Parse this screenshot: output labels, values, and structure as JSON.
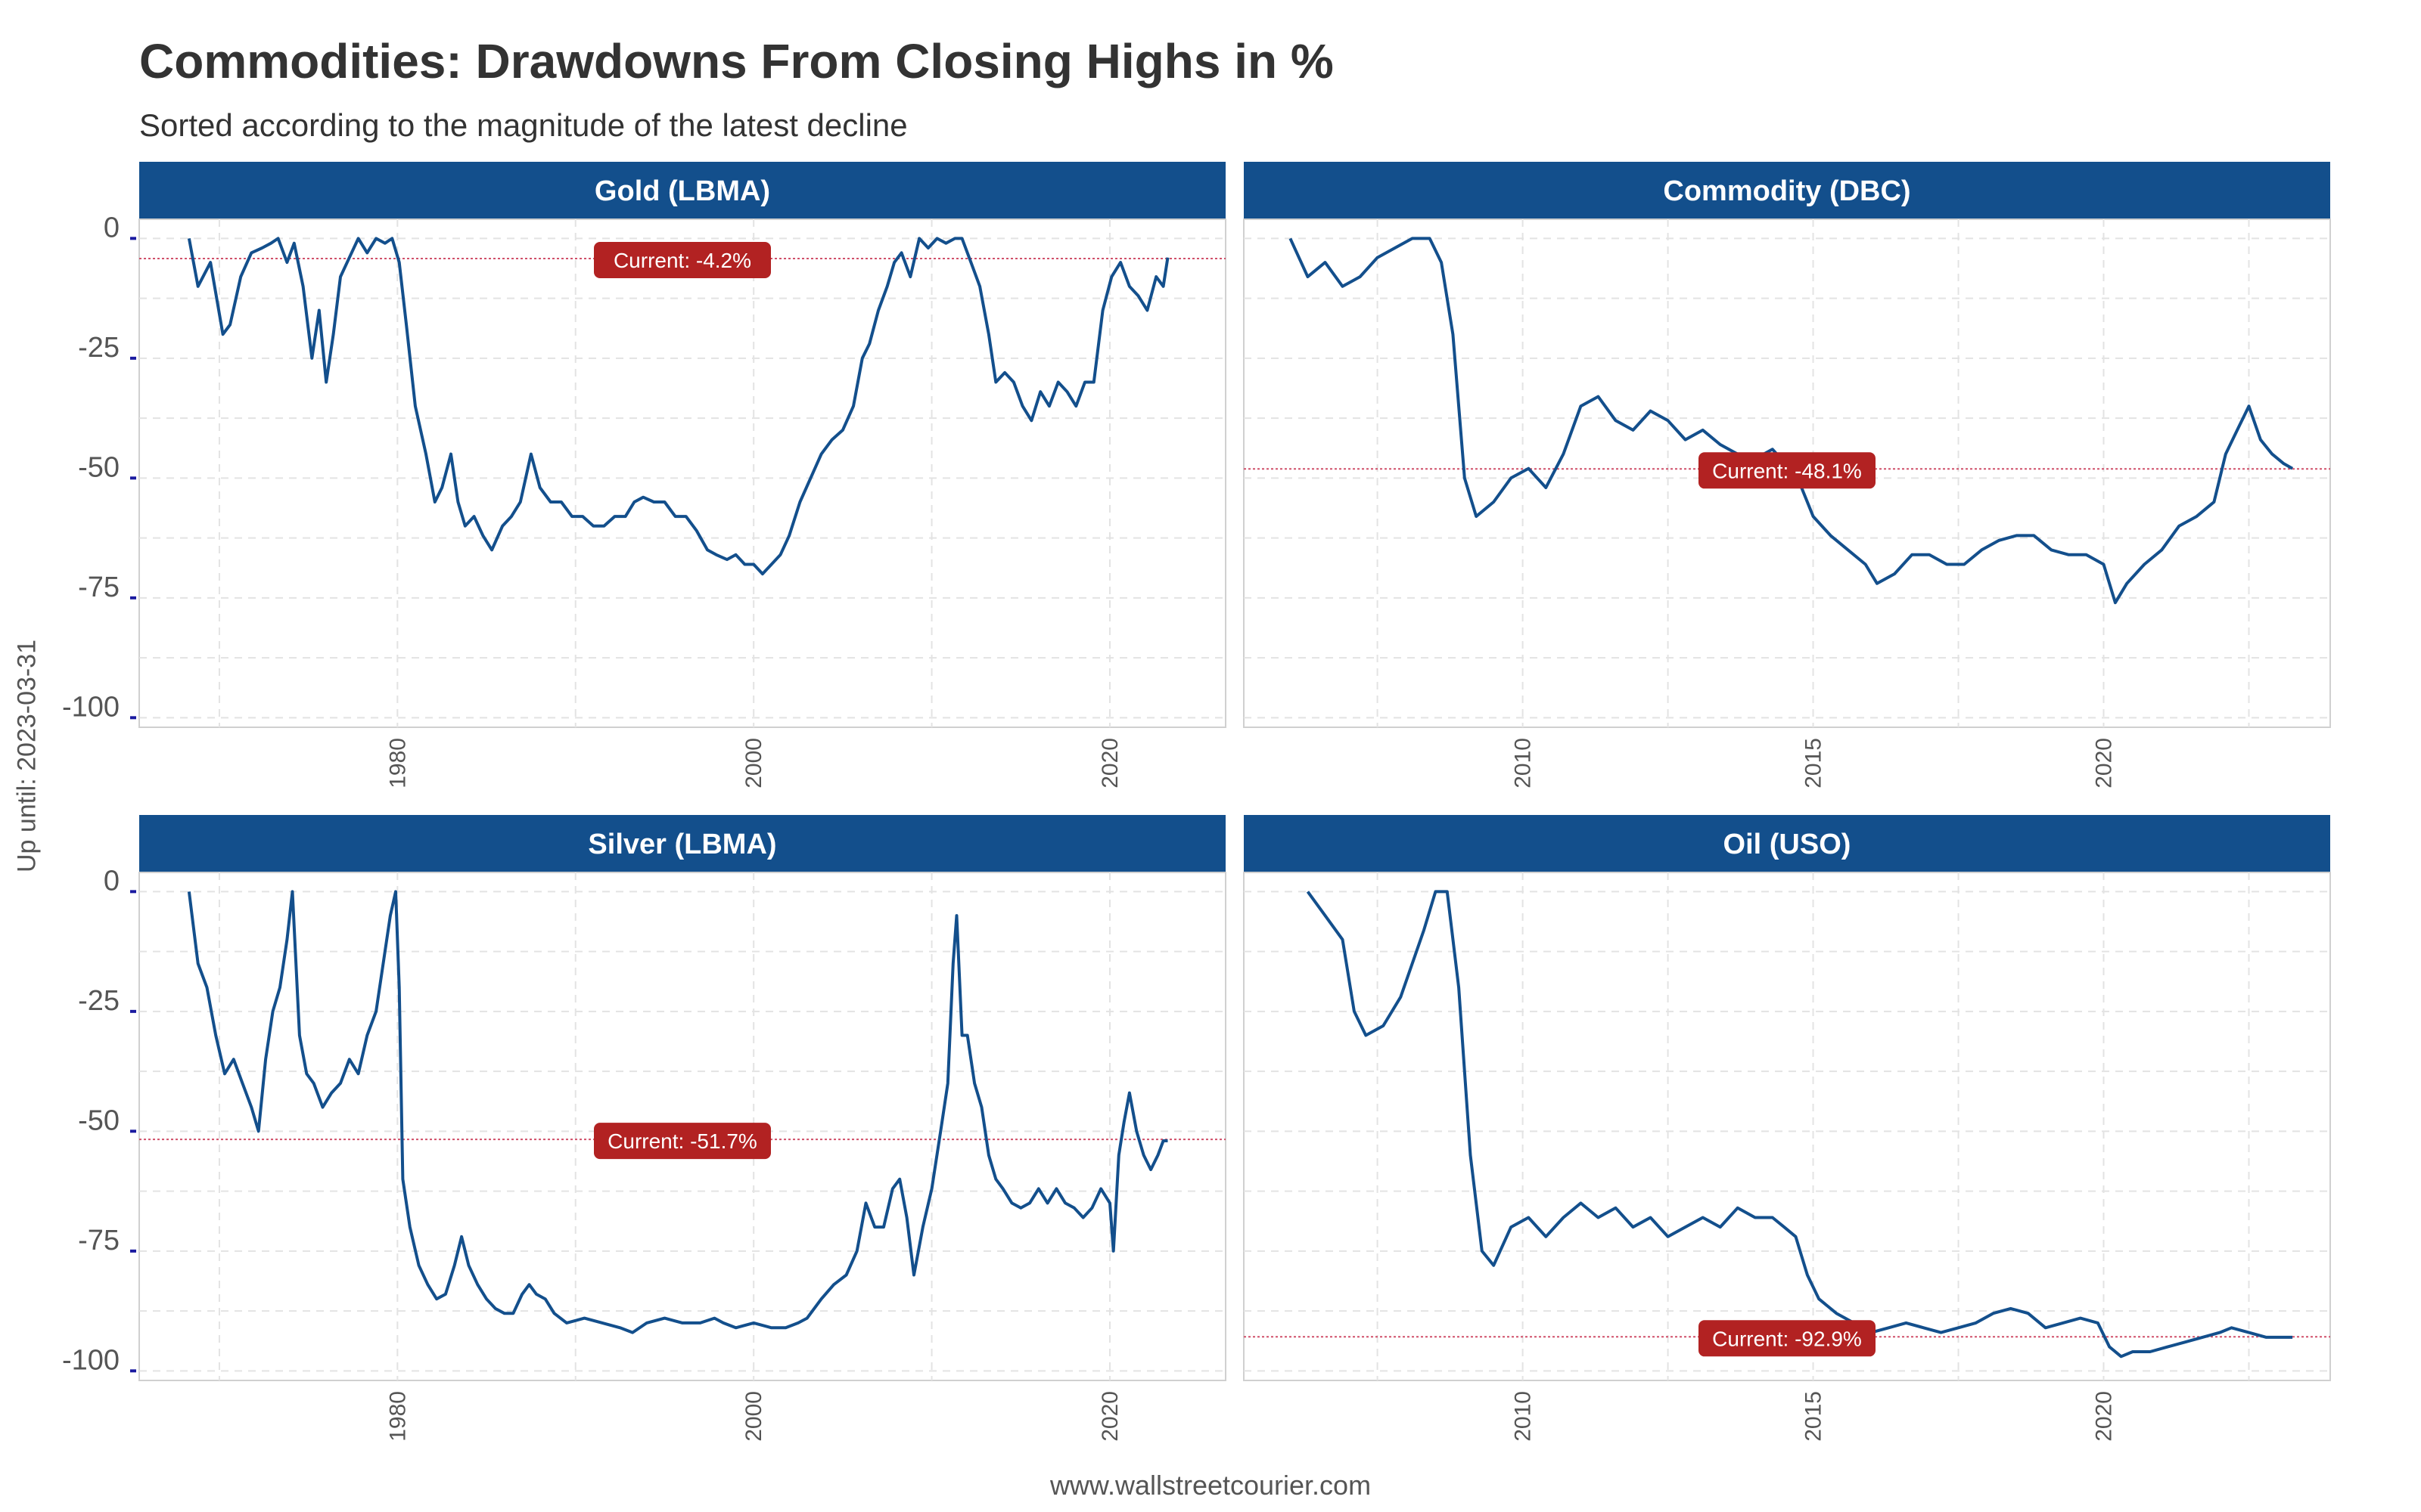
{
  "title": "Commodities: Drawdowns From Closing Highs in %",
  "subtitle": "Sorted according to the magnitude of the latest decline",
  "ylabel": "Up until: 2023-03-31",
  "caption": "www.wallstreetcourier.com",
  "colors": {
    "line": "#134f8c",
    "strip": "#134f8c",
    "badge": "#b22222",
    "refline": "#d0506a",
    "grid": "#e3e3e3"
  },
  "chart_data": [
    {
      "type": "line",
      "title": "Gold (LBMA)",
      "xlim": [
        1965.5,
        2026.5
      ],
      "ylim": [
        -102,
        4
      ],
      "xticks": [
        1980,
        2000,
        2020
      ],
      "yticks": [
        0,
        -25,
        -50,
        -75,
        -100
      ],
      "current_value": -4.2,
      "current_label": "Current:  -4.2%",
      "series": [
        {
          "x": [
            1968.3,
            1968.8,
            1969.5,
            1970.2,
            1970.6,
            1971.2,
            1971.8,
            1972.4,
            1972.9,
            1973.3,
            1973.8,
            1974.2,
            1974.7,
            1975.2,
            1975.6,
            1976.0,
            1976.4,
            1976.8,
            1977.3,
            1977.8,
            1978.3,
            1978.8,
            1979.3,
            1979.7,
            1980.1,
            1980.5,
            1981.0,
            1981.6,
            1982.1,
            1982.5,
            1983.0,
            1983.4,
            1983.8,
            1984.3,
            1984.8,
            1985.3,
            1985.9,
            1986.4,
            1986.9,
            1987.5,
            1988.0,
            1988.6,
            1989.2,
            1989.8,
            1990.4,
            1991.0,
            1991.6,
            1992.2,
            1992.8,
            1993.3,
            1993.8,
            1994.4,
            1995.0,
            1995.6,
            1996.2,
            1996.8,
            1997.4,
            1997.9,
            1998.5,
            1999.0,
            1999.5,
            2000.0,
            2000.5,
            2001.0,
            2001.5,
            2002.0,
            2002.6,
            2003.2,
            2003.8,
            2004.4,
            2005.0,
            2005.6,
            2006.1,
            2006.5,
            2007.0,
            2007.5,
            2007.9,
            2008.3,
            2008.8,
            2009.3,
            2009.8,
            2010.3,
            2010.8,
            2011.3,
            2011.7,
            2012.2,
            2012.7,
            2013.2,
            2013.6,
            2014.1,
            2014.6,
            2015.1,
            2015.6,
            2016.1,
            2016.6,
            2017.1,
            2017.6,
            2018.1,
            2018.6,
            2019.1,
            2019.6,
            2020.1,
            2020.6,
            2021.1,
            2021.6,
            2022.1,
            2022.6,
            2023.0,
            2023.25
          ],
          "y": [
            0,
            -10,
            -5,
            -20,
            -18,
            -8,
            -3,
            -2,
            -1,
            0,
            -5,
            -1,
            -10,
            -25,
            -15,
            -30,
            -20,
            -8,
            -4,
            0,
            -3,
            0,
            -1,
            0,
            -5,
            -18,
            -35,
            -45,
            -55,
            -52,
            -45,
            -55,
            -60,
            -58,
            -62,
            -65,
            -60,
            -58,
            -55,
            -45,
            -52,
            -55,
            -55,
            -58,
            -58,
            -60,
            -60,
            -58,
            -58,
            -55,
            -54,
            -55,
            -55,
            -58,
            -58,
            -61,
            -65,
            -66,
            -67,
            -66,
            -68,
            -68,
            -70,
            -68,
            -66,
            -62,
            -55,
            -50,
            -45,
            -42,
            -40,
            -35,
            -25,
            -22,
            -15,
            -10,
            -5,
            -3,
            -8,
            0,
            -2,
            0,
            -1,
            0,
            0,
            -5,
            -10,
            -20,
            -30,
            -28,
            -30,
            -35,
            -38,
            -32,
            -35,
            -30,
            -32,
            -35,
            -30,
            -30,
            -15,
            -8,
            -5,
            -10,
            -12,
            -15,
            -8,
            -10,
            -4
          ]
        }
      ]
    },
    {
      "type": "line",
      "title": "Commodity (DBC)",
      "xlim": [
        2005.2,
        2023.9
      ],
      "ylim": [
        -102,
        4
      ],
      "xticks": [
        2010,
        2015,
        2020
      ],
      "yticks": [
        0,
        -25,
        -50,
        -75,
        -100
      ],
      "current_value": -48.1,
      "current_label": "Current: -48.1%",
      "series": [
        {
          "x": [
            2006.0,
            2006.3,
            2006.6,
            2006.9,
            2007.2,
            2007.5,
            2007.8,
            2008.1,
            2008.4,
            2008.6,
            2008.8,
            2009.0,
            2009.2,
            2009.5,
            2009.8,
            2010.1,
            2010.4,
            2010.7,
            2011.0,
            2011.3,
            2011.6,
            2011.9,
            2012.2,
            2012.5,
            2012.8,
            2013.1,
            2013.4,
            2013.7,
            2014.0,
            2014.3,
            2014.6,
            2014.8,
            2015.0,
            2015.3,
            2015.6,
            2015.9,
            2016.1,
            2016.4,
            2016.7,
            2017.0,
            2017.3,
            2017.6,
            2017.9,
            2018.2,
            2018.5,
            2018.8,
            2019.1,
            2019.4,
            2019.7,
            2020.0,
            2020.2,
            2020.4,
            2020.7,
            2021.0,
            2021.3,
            2021.6,
            2021.9,
            2022.1,
            2022.3,
            2022.5,
            2022.7,
            2022.9,
            2023.1,
            2023.25
          ],
          "y": [
            0,
            -8,
            -5,
            -10,
            -8,
            -4,
            -2,
            0,
            0,
            -5,
            -20,
            -50,
            -58,
            -55,
            -50,
            -48,
            -52,
            -45,
            -35,
            -33,
            -38,
            -40,
            -36,
            -38,
            -42,
            -40,
            -43,
            -45,
            -46,
            -44,
            -48,
            -52,
            -58,
            -62,
            -65,
            -68,
            -72,
            -70,
            -66,
            -66,
            -68,
            -68,
            -65,
            -63,
            -62,
            -62,
            -65,
            -66,
            -66,
            -68,
            -76,
            -72,
            -68,
            -65,
            -60,
            -58,
            -55,
            -45,
            -40,
            -35,
            -42,
            -45,
            -47,
            -48
          ]
        }
      ]
    },
    {
      "type": "line",
      "title": "Silver (LBMA)",
      "xlim": [
        1965.5,
        2026.5
      ],
      "ylim": [
        -102,
        4
      ],
      "xticks": [
        1980,
        2000,
        2020
      ],
      "yticks": [
        0,
        -25,
        -50,
        -75,
        -100
      ],
      "current_value": -51.7,
      "current_label": "Current: -51.7%",
      "series": [
        {
          "x": [
            1968.3,
            1968.8,
            1969.3,
            1969.8,
            1970.3,
            1970.8,
            1971.3,
            1971.8,
            1972.2,
            1972.6,
            1973.0,
            1973.4,
            1973.8,
            1974.1,
            1974.5,
            1974.9,
            1975.3,
            1975.8,
            1976.3,
            1976.8,
            1977.3,
            1977.8,
            1978.3,
            1978.8,
            1979.2,
            1979.6,
            1979.9,
            1980.1,
            1980.3,
            1980.7,
            1981.2,
            1981.7,
            1982.2,
            1982.7,
            1983.2,
            1983.6,
            1984.0,
            1984.5,
            1985.0,
            1985.5,
            1986.0,
            1986.5,
            1987.0,
            1987.4,
            1987.8,
            1988.3,
            1988.8,
            1989.5,
            1990.5,
            1991.5,
            1992.5,
            1993.2,
            1994.0,
            1995.0,
            1996.0,
            1997.0,
            1997.8,
            1998.3,
            1999.0,
            2000.0,
            2001.0,
            2001.8,
            2002.5,
            2003.0,
            2003.8,
            2004.5,
            2005.2,
            2005.8,
            2006.3,
            2006.8,
            2007.3,
            2007.8,
            2008.2,
            2008.6,
            2009.0,
            2009.5,
            2010.0,
            2010.5,
            2010.9,
            2011.2,
            2011.4,
            2011.7,
            2012.0,
            2012.4,
            2012.8,
            2013.2,
            2013.6,
            2014.0,
            2014.5,
            2015.0,
            2015.5,
            2016.0,
            2016.5,
            2017.0,
            2017.5,
            2018.0,
            2018.5,
            2019.0,
            2019.5,
            2020.0,
            2020.2,
            2020.5,
            2020.8,
            2021.1,
            2021.5,
            2021.9,
            2022.3,
            2022.7,
            2023.0,
            2023.25
          ],
          "y": [
            0,
            -15,
            -20,
            -30,
            -38,
            -35,
            -40,
            -45,
            -50,
            -35,
            -25,
            -20,
            -10,
            0,
            -30,
            -38,
            -40,
            -45,
            -42,
            -40,
            -35,
            -38,
            -30,
            -25,
            -15,
            -5,
            0,
            -20,
            -60,
            -70,
            -78,
            -82,
            -85,
            -84,
            -78,
            -72,
            -78,
            -82,
            -85,
            -87,
            -88,
            -88,
            -84,
            -82,
            -84,
            -85,
            -88,
            -90,
            -89,
            -90,
            -91,
            -92,
            -90,
            -89,
            -90,
            -90,
            -89,
            -90,
            -91,
            -90,
            -91,
            -91,
            -90,
            -89,
            -85,
            -82,
            -80,
            -75,
            -65,
            -70,
            -70,
            -62,
            -60,
            -68,
            -80,
            -70,
            -62,
            -50,
            -40,
            -15,
            -5,
            -30,
            -30,
            -40,
            -45,
            -55,
            -60,
            -62,
            -65,
            -66,
            -65,
            -62,
            -65,
            -62,
            -65,
            -66,
            -68,
            -66,
            -62,
            -65,
            -75,
            -55,
            -48,
            -42,
            -50,
            -55,
            -58,
            -55,
            -52,
            -52
          ]
        }
      ]
    },
    {
      "type": "line",
      "title": "Oil (USO)",
      "xlim": [
        2005.2,
        2023.9
      ],
      "ylim": [
        -102,
        4
      ],
      "xticks": [
        2010,
        2015,
        2020
      ],
      "yticks": [
        0,
        -25,
        -50,
        -75,
        -100
      ],
      "current_value": -92.9,
      "current_label": "Current: -92.9%",
      "series": [
        {
          "x": [
            2006.3,
            2006.6,
            2006.9,
            2007.1,
            2007.3,
            2007.6,
            2007.9,
            2008.1,
            2008.3,
            2008.5,
            2008.7,
            2008.9,
            2009.1,
            2009.3,
            2009.5,
            2009.8,
            2010.1,
            2010.4,
            2010.7,
            2011.0,
            2011.3,
            2011.6,
            2011.9,
            2012.2,
            2012.5,
            2012.8,
            2013.1,
            2013.4,
            2013.7,
            2014.0,
            2014.3,
            2014.5,
            2014.7,
            2014.9,
            2015.1,
            2015.4,
            2015.7,
            2016.0,
            2016.3,
            2016.6,
            2016.9,
            2017.2,
            2017.5,
            2017.8,
            2018.1,
            2018.4,
            2018.7,
            2019.0,
            2019.3,
            2019.6,
            2019.9,
            2020.1,
            2020.3,
            2020.5,
            2020.8,
            2021.1,
            2021.4,
            2021.7,
            2022.0,
            2022.2,
            2022.5,
            2022.8,
            2023.0,
            2023.25
          ],
          "y": [
            0,
            -5,
            -10,
            -25,
            -30,
            -28,
            -22,
            -15,
            -8,
            0,
            0,
            -20,
            -55,
            -75,
            -78,
            -70,
            -68,
            -72,
            -68,
            -65,
            -68,
            -66,
            -70,
            -68,
            -72,
            -70,
            -68,
            -70,
            -66,
            -68,
            -68,
            -70,
            -72,
            -80,
            -85,
            -88,
            -90,
            -92,
            -91,
            -90,
            -91,
            -92,
            -91,
            -90,
            -88,
            -87,
            -88,
            -91,
            -90,
            -89,
            -90,
            -95,
            -97,
            -96,
            -96,
            -95,
            -94,
            -93,
            -92,
            -91,
            -92,
            -93,
            -93,
            -93
          ]
        }
      ]
    }
  ]
}
